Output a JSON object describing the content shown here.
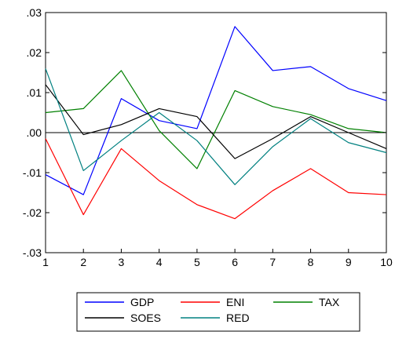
{
  "chart_data": {
    "type": "line",
    "x": [
      1,
      2,
      3,
      4,
      5,
      6,
      7,
      8,
      9,
      10
    ],
    "ylim": [
      -0.03,
      0.03
    ],
    "yticks": [
      ".03",
      ".02",
      ".01",
      ".00",
      "-.01",
      "-.02",
      "-.03"
    ],
    "ytick_values": [
      0.03,
      0.02,
      0.01,
      0.0,
      -0.01,
      -0.02,
      -0.03
    ],
    "xticks": [
      "1",
      "2",
      "3",
      "4",
      "5",
      "6",
      "7",
      "8",
      "9",
      "10"
    ],
    "zero_line": true,
    "grid": false,
    "legend_position": "bottom",
    "series": [
      {
        "name": "GDP",
        "color": "#0000ff",
        "values": [
          -0.0105,
          -0.0155,
          0.0085,
          0.003,
          0.001,
          0.0265,
          0.0155,
          0.0165,
          0.011,
          0.008
        ]
      },
      {
        "name": "ENI",
        "color": "#ff0000",
        "values": [
          -0.0015,
          -0.0205,
          -0.004,
          -0.012,
          -0.018,
          -0.0215,
          -0.0145,
          -0.009,
          -0.015,
          -0.0155
        ]
      },
      {
        "name": "TAX",
        "color": "#008000",
        "values": [
          0.005,
          0.006,
          0.0155,
          0.0005,
          -0.009,
          0.0105,
          0.0065,
          0.0045,
          0.001,
          0.0
        ]
      },
      {
        "name": "SOES",
        "color": "#000000",
        "values": [
          0.012,
          -0.0005,
          0.002,
          0.006,
          0.004,
          -0.0065,
          -0.0015,
          0.004,
          0.0,
          -0.004
        ]
      },
      {
        "name": "RED",
        "color": "#008080",
        "values": [
          0.016,
          -0.0095,
          -0.002,
          0.005,
          -0.002,
          -0.013,
          -0.0035,
          0.0035,
          -0.0025,
          -0.005
        ]
      }
    ]
  }
}
